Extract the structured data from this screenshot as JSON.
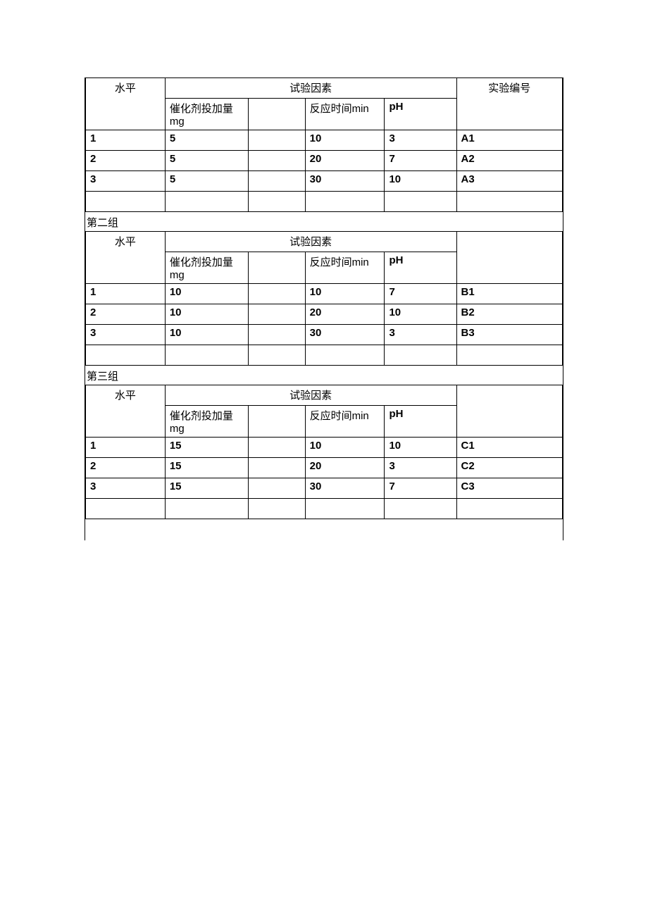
{
  "headers": {
    "level": "水平",
    "factors": "试验因素",
    "exp_no": "实验编号",
    "catalyst": "催化剂投加量 mg",
    "time": "反应时间min",
    "ph": "pH"
  },
  "groups": [
    {
      "label": "",
      "show_exp_header": true,
      "show_label": false,
      "rows": [
        {
          "level": "1",
          "catalyst": "5",
          "time": "10",
          "ph": "3",
          "expno": "A1"
        },
        {
          "level": "2",
          "catalyst": "5",
          "time": "20",
          "ph": "7",
          "expno": "A2"
        },
        {
          "level": "3",
          "catalyst": "5",
          "time": "30",
          "ph": "10",
          "expno": "A3"
        }
      ]
    },
    {
      "label": "第二组",
      "show_exp_header": false,
      "show_label": true,
      "rows": [
        {
          "level": "1",
          "catalyst": "10",
          "time": "10",
          "ph": "7",
          "expno": "B1"
        },
        {
          "level": "2",
          "catalyst": "10",
          "time": "20",
          "ph": "10",
          "expno": "B2"
        },
        {
          "level": "3",
          "catalyst": "10",
          "time": "30",
          "ph": "3",
          "expno": "B3"
        }
      ]
    },
    {
      "label": "第三组",
      "show_exp_header": false,
      "show_label": true,
      "rows": [
        {
          "level": "1",
          "catalyst": "15",
          "time": "10",
          "ph": "10",
          "expno": "C1"
        },
        {
          "level": "2",
          "catalyst": "15",
          "time": "20",
          "ph": "3",
          "expno": "C2"
        },
        {
          "level": "3",
          "catalyst": "15",
          "time": "30",
          "ph": "7",
          "expno": "C3"
        }
      ]
    }
  ],
  "styling": {
    "border_color": "#000000",
    "background_color": "#ffffff",
    "font_size": 15,
    "bold_weight": "bold"
  }
}
